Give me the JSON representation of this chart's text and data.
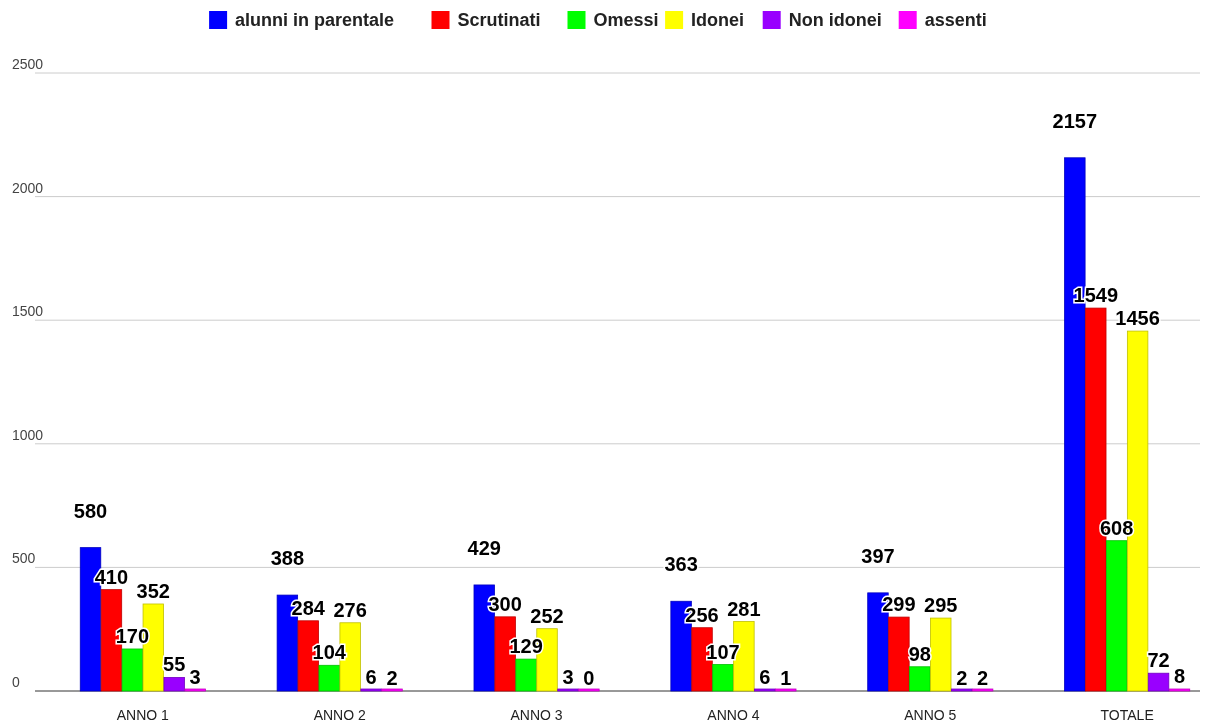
{
  "chart_data": {
    "type": "bar",
    "categories": [
      "ANNO 1",
      "ANNO 2",
      "ANNO 3",
      "ANNO 4",
      "ANNO 5",
      "TOTALE"
    ],
    "series": [
      {
        "name": "alunni in parentale",
        "color": "#0000ff",
        "values": [
          580,
          388,
          429,
          363,
          397,
          2157
        ]
      },
      {
        "name": "Scrutinati",
        "color": "#ff0000",
        "values": [
          410,
          284,
          300,
          256,
          299,
          1549
        ]
      },
      {
        "name": "Omessi",
        "color": "#00ff00",
        "values": [
          170,
          104,
          129,
          107,
          98,
          608
        ]
      },
      {
        "name": "Idonei",
        "color": "#ffff00",
        "values": [
          352,
          276,
          252,
          281,
          295,
          1456
        ]
      },
      {
        "name": "Non idonei",
        "color": "#9900ff",
        "values": [
          55,
          6,
          3,
          6,
          2,
          72
        ]
      },
      {
        "name": "assenti",
        "color": "#ff00ff",
        "values": [
          3,
          2,
          0,
          1,
          2,
          8
        ]
      }
    ],
    "ylim": [
      0,
      2500
    ],
    "yticks": [
      0,
      500,
      1000,
      1500,
      2000,
      2500
    ],
    "grid": "y",
    "legend": "top",
    "data_labels": true
  }
}
